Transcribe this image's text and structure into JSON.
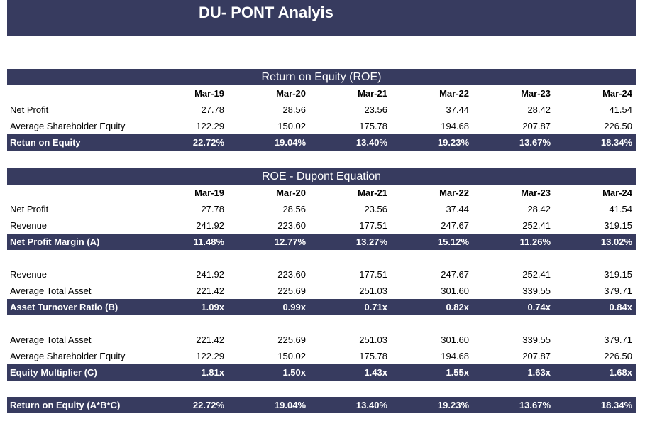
{
  "header": {
    "title": "DU- PONT Analyis"
  },
  "sections": [
    {
      "heading": "Return on Equity (ROE)",
      "columns": [
        "Mar-19",
        "Mar-20",
        "Mar-21",
        "Mar-22",
        "Mar-23",
        "Mar-24"
      ],
      "groups": [
        {
          "rows": [
            {
              "label": "Net Profit",
              "values": [
                "27.78",
                "28.56",
                "23.56",
                "37.44",
                "28.42",
                "41.54"
              ]
            },
            {
              "label": "Average Shareholder Equity",
              "values": [
                "122.29",
                "150.02",
                "175.78",
                "194.68",
                "207.87",
                "226.50"
              ]
            }
          ],
          "total": {
            "label": "Retun on Equity",
            "values": [
              "22.72%",
              "19.04%",
              "13.40%",
              "19.23%",
              "13.67%",
              "18.34%"
            ]
          }
        }
      ]
    },
    {
      "heading": "ROE - Dupont Equation",
      "columns": [
        "Mar-19",
        "Mar-20",
        "Mar-21",
        "Mar-22",
        "Mar-23",
        "Mar-24"
      ],
      "groups": [
        {
          "rows": [
            {
              "label": "Net Profit",
              "values": [
                "27.78",
                "28.56",
                "23.56",
                "37.44",
                "28.42",
                "41.54"
              ]
            },
            {
              "label": "Revenue",
              "values": [
                "241.92",
                "223.60",
                "177.51",
                "247.67",
                "252.41",
                "319.15"
              ]
            }
          ],
          "total": {
            "label": "Net Profit Margin (A)",
            "values": [
              "11.48%",
              "12.77%",
              "13.27%",
              "15.12%",
              "11.26%",
              "13.02%"
            ]
          }
        },
        {
          "rows": [
            {
              "label": "Revenue",
              "values": [
                "241.92",
                "223.60",
                "177.51",
                "247.67",
                "252.41",
                "319.15"
              ]
            },
            {
              "label": "Average Total Asset",
              "values": [
                "221.42",
                "225.69",
                "251.03",
                "301.60",
                "339.55",
                "379.71"
              ]
            }
          ],
          "total": {
            "label": "Asset Turnover Ratio (B)",
            "values": [
              "1.09x",
              "0.99x",
              "0.71x",
              "0.82x",
              "0.74x",
              "0.84x"
            ]
          }
        },
        {
          "rows": [
            {
              "label": "Average Total Asset",
              "values": [
                "221.42",
                "225.69",
                "251.03",
                "301.60",
                "339.55",
                "379.71"
              ]
            },
            {
              "label": "Average Shareholder Equity",
              "values": [
                "122.29",
                "150.02",
                "175.78",
                "194.68",
                "207.87",
                "226.50"
              ]
            }
          ],
          "total": {
            "label": "Equity Multiplier (C)",
            "values": [
              "1.81x",
              "1.50x",
              "1.43x",
              "1.55x",
              "1.63x",
              "1.68x"
            ]
          }
        },
        {
          "rows": [],
          "total": {
            "label": "Return on Equity (A*B*C)",
            "values": [
              "22.72%",
              "19.04%",
              "13.40%",
              "19.23%",
              "13.67%",
              "18.34%"
            ]
          }
        }
      ]
    }
  ]
}
